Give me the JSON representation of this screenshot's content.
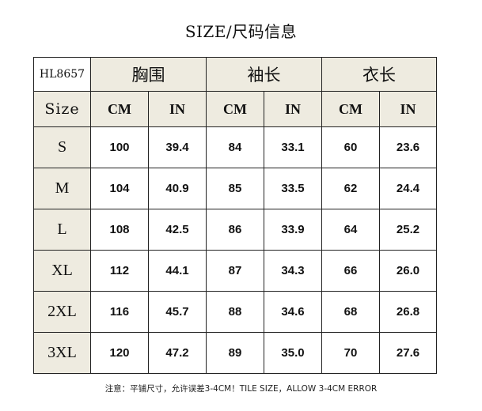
{
  "title": "SIZE/尺码信息",
  "table": {
    "code": "HL8657",
    "groups": [
      "胸围",
      "袖长",
      "衣长"
    ],
    "size_header": "Size",
    "units": [
      "CM",
      "IN",
      "CM",
      "IN",
      "CM",
      "IN"
    ],
    "rows": [
      {
        "size": "S",
        "values": [
          "100",
          "39.4",
          "84",
          "33.1",
          "60",
          "23.6"
        ]
      },
      {
        "size": "M",
        "values": [
          "104",
          "40.9",
          "85",
          "33.5",
          "62",
          "24.4"
        ]
      },
      {
        "size": "L",
        "values": [
          "108",
          "42.5",
          "86",
          "33.9",
          "64",
          "25.2"
        ]
      },
      {
        "size": "XL",
        "values": [
          "112",
          "44.1",
          "87",
          "34.3",
          "66",
          "26.0"
        ]
      },
      {
        "size": "2XL",
        "values": [
          "116",
          "45.7",
          "88",
          "34.6",
          "68",
          "26.8"
        ]
      },
      {
        "size": "3XL",
        "values": [
          "120",
          "47.2",
          "89",
          "35.0",
          "70",
          "27.6"
        ]
      }
    ]
  },
  "note": "注意：平铺尺寸，允许误差3-4CM！TILE SIZE，ALLOW 3-4CM ERROR",
  "colors": {
    "header_bg": "#EEEBE0",
    "border": "#222222"
  }
}
